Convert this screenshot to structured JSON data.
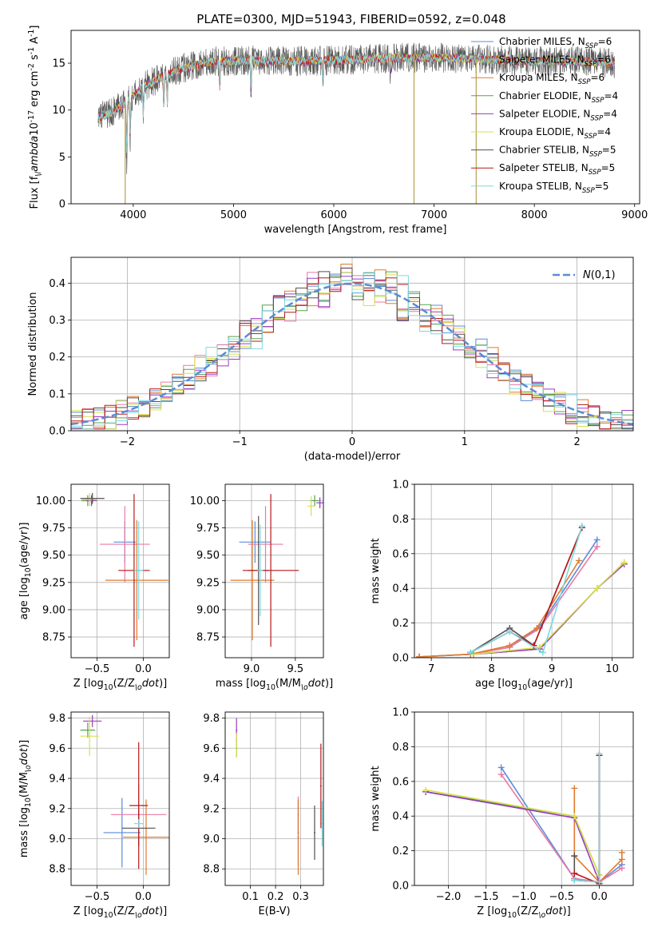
{
  "title": "PLATE=0300, MJD=51943, FIBERID=0592, z=0.048",
  "series": [
    {
      "name": "Chabrier MILES, N$_{SSP}$=6",
      "color": "#5b8bd8"
    },
    {
      "name": "Salpeter MILES, N$_{SSP}$=6",
      "color": "#e879a8"
    },
    {
      "name": "Kroupa MILES, N$_{SSP}$=6",
      "color": "#e07a2e"
    },
    {
      "name": "Chabrier ELODIE, N$_{SSP}$=4",
      "color": "#58a050"
    },
    {
      "name": "Salpeter ELODIE, N$_{SSP}$=4",
      "color": "#9a3cc0"
    },
    {
      "name": "Kroupa ELODIE, N$_{SSP}$=4",
      "color": "#d8e04a"
    },
    {
      "name": "Chabrier STELIB, N$_{SSP}$=5",
      "color": "#505050"
    },
    {
      "name": "Salpeter STELIB, N$_{SSP}$=5",
      "color": "#b81818"
    },
    {
      "name": "Kroupa STELIB, N$_{SSP}$=5",
      "color": "#7fd8e0"
    }
  ],
  "chart_data": [
    {
      "id": "spectrum",
      "type": "line",
      "xlabel": "wavelength [Angstrom, rest frame]",
      "ylabel": "Flux [f$_\\lambda$10$^{-17}$ erg cm$^{-2}$ s$^{-1}$ A$^{-1}$]",
      "xlim": [
        3380,
        9050
      ],
      "ylim": [
        0,
        18.5
      ],
      "xticks": [
        4000,
        5000,
        6000,
        7000,
        8000,
        9000
      ],
      "yticks": [
        0,
        5,
        10,
        15
      ],
      "grid": false,
      "legend": "upper right",
      "data_range": [
        3650,
        8800
      ],
      "continuum": [
        [
          3650,
          9.2
        ],
        [
          3800,
          9.8
        ],
        [
          3950,
          11.0
        ],
        [
          4100,
          12.5
        ],
        [
          4300,
          13.6
        ],
        [
          4500,
          14.5
        ],
        [
          4800,
          15.2
        ],
        [
          5200,
          15.3
        ],
        [
          5600,
          15.2
        ],
        [
          6000,
          15.3
        ],
        [
          6500,
          15.5
        ],
        [
          7000,
          15.6
        ],
        [
          7500,
          15.4
        ],
        [
          8000,
          15.2
        ],
        [
          8500,
          15.2
        ],
        [
          8800,
          15.0
        ]
      ],
      "absorption_lines": [
        [
          3934,
          5.5
        ],
        [
          3969,
          4.0
        ],
        [
          4101,
          3.0
        ],
        [
          4304,
          3.0
        ],
        [
          4340,
          3.0
        ],
        [
          4861,
          2.5
        ],
        [
          5175,
          3.0
        ],
        [
          5890,
          2.0
        ],
        [
          6563,
          1.5
        ]
      ],
      "bad_pixels": [
        3920,
        6800,
        7420
      ]
    },
    {
      "id": "residuals",
      "type": "histogram",
      "xlabel": "(data-model)/error",
      "ylabel": "Normed distribution",
      "xlim": [
        -2.5,
        2.5
      ],
      "ylim": [
        0,
        0.47
      ],
      "xticks": [
        -2,
        -1,
        0,
        1,
        2
      ],
      "yticks": [
        0.0,
        0.1,
        0.2,
        0.3,
        0.4
      ],
      "grid": true,
      "legend": "upper right",
      "bin_width": 0.1,
      "reference_curve": {
        "name": "$\\mathcal{N}(0,1)$",
        "color": "#5b8bd8",
        "mean": 0,
        "sigma": 1
      }
    },
    {
      "id": "z_age",
      "type": "errorbar",
      "xlabel": "Z [log$_{10}$(Z/Z$_\\odot$)]",
      "ylabel": "age  [log$_{10}$(age/yr)]",
      "xlim": [
        -0.78,
        0.28
      ],
      "ylim": [
        8.56,
        10.15
      ],
      "xticks": [
        -0.5,
        0.0
      ],
      "yticks": [
        8.75,
        9.0,
        9.25,
        9.5,
        9.75,
        10.0
      ],
      "grid": true,
      "points": [
        {
          "s": 0,
          "x": -0.2,
          "xerr": 0.12,
          "y": 9.62,
          "yerr": 0.19
        },
        {
          "s": 1,
          "x": -0.2,
          "xerr": 0.27,
          "y": 9.6,
          "yerr": 0.35
        },
        {
          "s": 2,
          "x": -0.07,
          "xerr": 0.34,
          "y": 9.27,
          "yerr": 0.55
        },
        {
          "s": 3,
          "x": -0.6,
          "xerr": 0.07,
          "y": 10.0,
          "yerr": 0.05
        },
        {
          "s": 4,
          "x": -0.56,
          "xerr": 0.06,
          "y": 10.0,
          "yerr": 0.05
        },
        {
          "s": 5,
          "x": -0.58,
          "xerr": 0.08,
          "y": 10.01,
          "yerr": 0.06
        },
        {
          "s": 6,
          "x": -0.55,
          "xerr": 0.13,
          "y": 10.02,
          "yerr": 0.05
        },
        {
          "s": 7,
          "x": -0.1,
          "xerr": 0.17,
          "y": 9.36,
          "yerr": 0.7
        },
        {
          "s": 8,
          "x": -0.05,
          "xerr": 0.05,
          "y": 9.36,
          "yerr": 0.45
        }
      ]
    },
    {
      "id": "mass_age",
      "type": "errorbar",
      "xlabel": "mass [log$_{10}$(M/M$_\\odot$)]",
      "ylabel": "",
      "xlim": [
        8.7,
        9.82
      ],
      "ylim": [
        8.56,
        10.15
      ],
      "xticks": [
        9.0,
        9.5
      ],
      "yticks": [
        8.75,
        9.0,
        9.25,
        9.5,
        9.75,
        10.0
      ],
      "grid": true,
      "points": [
        {
          "s": 0,
          "x": 9.04,
          "xerr": 0.18,
          "y": 9.62,
          "yerr": 0.19
        },
        {
          "s": 1,
          "x": 9.16,
          "xerr": 0.2,
          "y": 9.6,
          "yerr": 0.35
        },
        {
          "s": 2,
          "x": 9.01,
          "xerr": 0.25,
          "y": 9.27,
          "yerr": 0.55
        },
        {
          "s": 3,
          "x": 9.72,
          "xerr": 0.05,
          "y": 10.0,
          "yerr": 0.05
        },
        {
          "s": 4,
          "x": 9.78,
          "xerr": 0.04,
          "y": 9.98,
          "yerr": 0.05
        },
        {
          "s": 5,
          "x": 9.68,
          "xerr": 0.04,
          "y": 9.95,
          "yerr": 0.09
        },
        {
          "s": 6,
          "x": 9.08,
          "xerr": 0.12,
          "y": 9.36,
          "yerr": 0.5
        },
        {
          "s": 7,
          "x": 9.22,
          "xerr": 0.32,
          "y": 9.36,
          "yerr": 0.7
        },
        {
          "s": 8,
          "x": 9.1,
          "xerr": 0.03,
          "y": 9.36,
          "yerr": 0.42
        }
      ]
    },
    {
      "id": "age_weight",
      "type": "line",
      "xlabel": "age  [log$_{10}$(age/yr)]",
      "ylabel": "mass weight",
      "xlim": [
        6.72,
        10.35
      ],
      "ylim": [
        0.0,
        1.0
      ],
      "xticks": [
        7,
        8,
        9,
        10
      ],
      "yticks": [
        0.0,
        0.2,
        0.4,
        0.6,
        0.8,
        1.0
      ],
      "grid": true,
      "series": [
        {
          "s": 0,
          "x": [
            6.8,
            7.65,
            8.3,
            8.8,
            9.75
          ],
          "y": [
            0.005,
            0.02,
            0.06,
            0.18,
            0.68
          ]
        },
        {
          "s": 1,
          "x": [
            6.8,
            7.65,
            8.3,
            8.8,
            9.75
          ],
          "y": [
            0.005,
            0.02,
            0.06,
            0.17,
            0.64
          ]
        },
        {
          "s": 2,
          "x": [
            6.8,
            7.65,
            8.3,
            8.75,
            9.45
          ],
          "y": [
            0.005,
            0.02,
            0.07,
            0.17,
            0.56
          ]
        },
        {
          "s": 3,
          "x": [
            7.7,
            8.8,
            9.75,
            10.2
          ],
          "y": [
            0.02,
            0.05,
            0.4,
            0.54
          ]
        },
        {
          "s": 4,
          "x": [
            7.7,
            8.8,
            9.75,
            10.2
          ],
          "y": [
            0.02,
            0.05,
            0.4,
            0.54
          ]
        },
        {
          "s": 5,
          "x": [
            7.7,
            8.8,
            9.75,
            10.2
          ],
          "y": [
            0.02,
            0.06,
            0.4,
            0.55
          ]
        },
        {
          "s": 6,
          "x": [
            7.65,
            8.3,
            8.7,
            9.5
          ],
          "y": [
            0.03,
            0.17,
            0.07,
            0.75
          ]
        },
        {
          "s": 7,
          "x": [
            7.65,
            8.3,
            8.7,
            9.5
          ],
          "y": [
            0.03,
            0.15,
            0.07,
            0.75
          ]
        },
        {
          "s": 8,
          "x": [
            7.65,
            8.3,
            8.85,
            9.5
          ],
          "y": [
            0.03,
            0.15,
            0.03,
            0.76
          ]
        }
      ]
    },
    {
      "id": "z_mass",
      "type": "errorbar",
      "xlabel": "Z [log$_{10}$(Z/Z$_\\odot$)]",
      "ylabel": "mass [log$_{10}$(M/M$_\\odot$)]",
      "xlim": [
        -0.78,
        0.28
      ],
      "ylim": [
        8.69,
        9.84
      ],
      "xticks": [
        -0.5,
        0.0
      ],
      "yticks": [
        8.8,
        9.0,
        9.2,
        9.4,
        9.6,
        9.8
      ],
      "grid": true,
      "points": [
        {
          "s": 0,
          "x": -0.23,
          "xerr": 0.2,
          "y": 9.04,
          "yerr": 0.23
        },
        {
          "s": 1,
          "x": -0.05,
          "xerr": 0.3,
          "y": 9.16,
          "yerr": 0.2
        },
        {
          "s": 2,
          "x": 0.03,
          "xerr": 0.25,
          "y": 9.01,
          "yerr": 0.25
        },
        {
          "s": 3,
          "x": -0.6,
          "xerr": 0.08,
          "y": 9.72,
          "yerr": 0.05
        },
        {
          "s": 4,
          "x": -0.55,
          "xerr": 0.1,
          "y": 9.78,
          "yerr": 0.04
        },
        {
          "s": 5,
          "x": -0.58,
          "xerr": 0.1,
          "y": 9.68,
          "yerr": 0.13
        },
        {
          "s": 6,
          "x": -0.05,
          "xerr": 0.18,
          "y": 9.07,
          "yerr": 0.12
        },
        {
          "s": 7,
          "x": -0.05,
          "xerr": 0.1,
          "y": 9.22,
          "yerr": 0.42
        },
        {
          "s": 8,
          "x": -0.05,
          "xerr": 0.05,
          "y": 9.1,
          "yerr": 0.03
        }
      ]
    },
    {
      "id": "ebv_mass",
      "type": "errorbar",
      "xlabel": "E(B-V)",
      "ylabel": "",
      "xlim": [
        0.0,
        0.39
      ],
      "ylim": [
        8.69,
        9.84
      ],
      "xticks": [
        0.1,
        0.2,
        0.3
      ],
      "yticks": [
        8.8,
        9.0,
        9.2,
        9.4,
        9.6,
        9.8
      ],
      "grid": true,
      "points": [
        {
          "s": 0,
          "x": 0.29,
          "xerr": 0.003,
          "y": 9.04,
          "yerr": 0.22
        },
        {
          "s": 1,
          "x": 0.29,
          "xerr": 0.003,
          "y": 9.16,
          "yerr": 0.12
        },
        {
          "s": 2,
          "x": 0.29,
          "xerr": 0.003,
          "y": 9.01,
          "yerr": 0.25
        },
        {
          "s": 3,
          "x": 0.045,
          "xerr": 0.003,
          "y": 9.6,
          "yerr": 0.06
        },
        {
          "s": 4,
          "x": 0.045,
          "xerr": 0.003,
          "y": 9.72,
          "yerr": 0.08
        },
        {
          "s": 5,
          "x": 0.045,
          "xerr": 0.003,
          "y": 9.62,
          "yerr": 0.08
        },
        {
          "s": 6,
          "x": 0.355,
          "xerr": 0.003,
          "y": 9.04,
          "yerr": 0.18
        },
        {
          "s": 7,
          "x": 0.38,
          "xerr": 0.003,
          "y": 9.35,
          "yerr": 0.28
        },
        {
          "s": 8,
          "x": 0.385,
          "xerr": 0.003,
          "y": 9.1,
          "yerr": 0.15
        }
      ]
    },
    {
      "id": "z_weight",
      "type": "line",
      "xlabel": "Z [log$_{10}$(Z/Z$_\\odot$)]",
      "ylabel": "mass weight",
      "xlim": [
        -2.45,
        0.45
      ],
      "ylim": [
        0.0,
        1.0
      ],
      "xticks": [
        -2.0,
        -1.5,
        -1.0,
        -0.5,
        0.0
      ],
      "yticks": [
        0.0,
        0.2,
        0.4,
        0.6,
        0.8,
        1.0
      ],
      "grid": true,
      "series": [
        {
          "s": 0,
          "x": [
            -1.3,
            -0.33,
            0.0,
            0.3
          ],
          "y": [
            0.68,
            0.04,
            0.02,
            0.12
          ]
        },
        {
          "s": 1,
          "x": [
            -1.3,
            -0.33,
            0.0,
            0.3
          ],
          "y": [
            0.64,
            0.04,
            0.02,
            0.1
          ]
        },
        {
          "s": 2,
          "x": [
            -0.33,
            -0.33,
            0.0,
            0.3,
            0.3
          ],
          "y": [
            0.56,
            0.17,
            0.02,
            0.15,
            0.19
          ]
        },
        {
          "s": 3,
          "x": [
            -2.3,
            -0.33,
            0.0
          ],
          "y": [
            0.54,
            0.4,
            0.06
          ]
        },
        {
          "s": 4,
          "x": [
            -2.3,
            -0.33,
            0.0
          ],
          "y": [
            0.54,
            0.39,
            0.02
          ]
        },
        {
          "s": 5,
          "x": [
            -2.3,
            -0.33,
            0.0
          ],
          "y": [
            0.55,
            0.4,
            0.06
          ]
        },
        {
          "s": 6,
          "x": [
            -0.33,
            -0.33,
            0.0,
            0.0
          ],
          "y": [
            0.17,
            0.03,
            0.02,
            0.75
          ]
        },
        {
          "s": 7,
          "x": [
            -0.33,
            0.0,
            0.0
          ],
          "y": [
            0.07,
            0.01,
            0.75
          ]
        },
        {
          "s": 8,
          "x": [
            -0.33,
            0.0,
            0.0
          ],
          "y": [
            0.03,
            0.02,
            0.76
          ]
        }
      ]
    }
  ]
}
